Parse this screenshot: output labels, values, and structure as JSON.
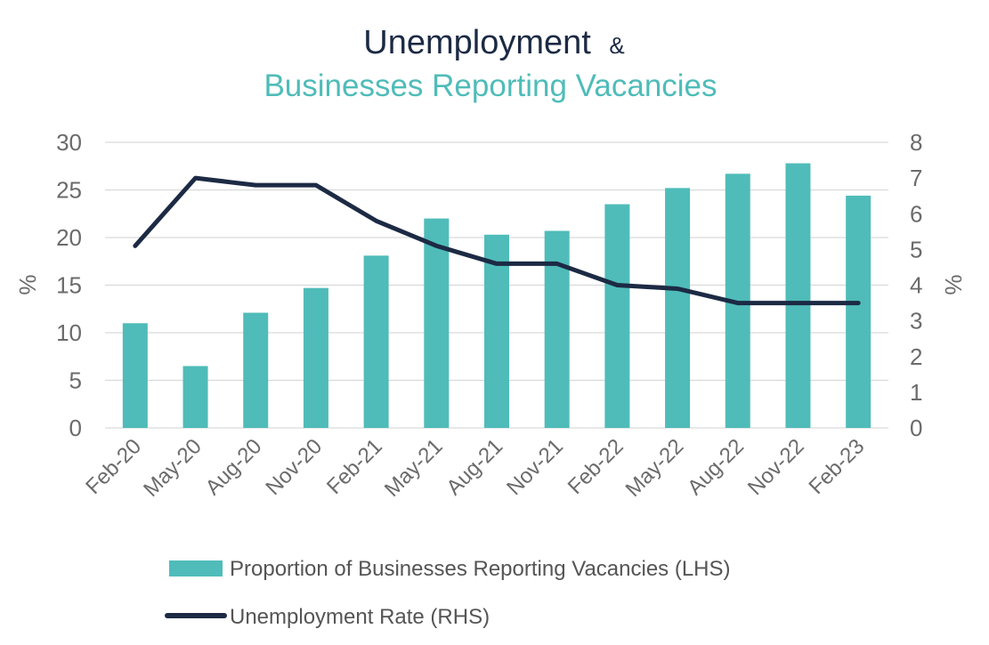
{
  "chart_data": {
    "type": "bar",
    "title": "Unemployment",
    "title_suffix": "&",
    "subtitle": "Businesses Reporting Vacancies",
    "categories": [
      "Feb-20",
      "May-20",
      "Aug-20",
      "Nov-20",
      "Feb-21",
      "May-21",
      "Aug-21",
      "Nov-21",
      "Feb-22",
      "May-22",
      "Aug-22",
      "Nov-22",
      "Feb-23"
    ],
    "series": [
      {
        "name": "Proportion of Businesses Reporting Vacancies (LHS)",
        "type": "bar",
        "axis": "left",
        "color": "#4fbcb9",
        "values": [
          11.0,
          6.5,
          12.1,
          14.7,
          18.1,
          22.0,
          20.3,
          20.7,
          23.5,
          25.2,
          26.7,
          27.8,
          24.4
        ]
      },
      {
        "name": "Unemployment Rate (RHS)",
        "type": "line",
        "axis": "right",
        "color": "#1c2a44",
        "values": [
          5.1,
          7.0,
          6.8,
          6.8,
          5.8,
          5.1,
          4.6,
          4.6,
          4.0,
          3.9,
          3.5,
          3.5,
          3.5
        ]
      }
    ],
    "ylabel": "%",
    "y2label": "%",
    "ylim": [
      0,
      30
    ],
    "y2lim": [
      0,
      8
    ],
    "yticks": [
      0,
      5,
      10,
      15,
      20,
      25,
      30
    ],
    "y2ticks": [
      0,
      1,
      2,
      3,
      4,
      5,
      6,
      7,
      8
    ],
    "grid": true,
    "legend_position": "bottom"
  }
}
